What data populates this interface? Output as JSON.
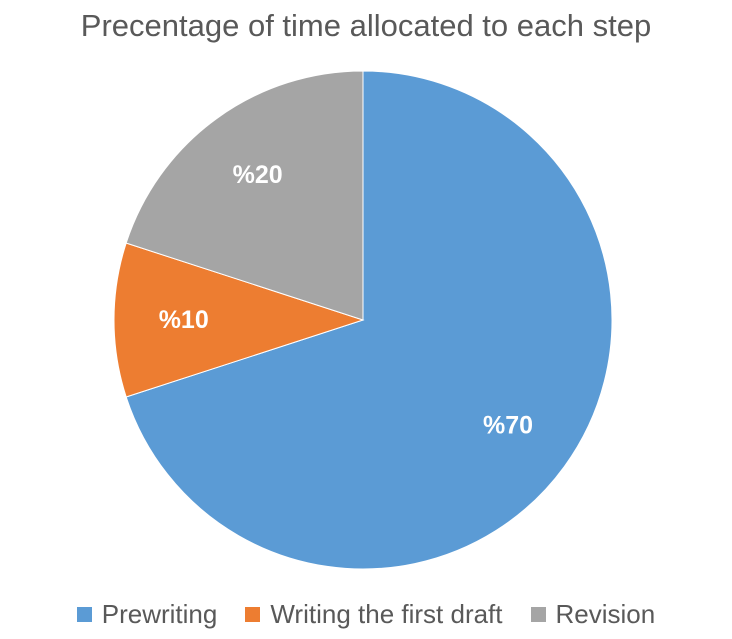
{
  "chart_data": {
    "type": "pie",
    "title": "Precentage of time allocated to each step",
    "categories": [
      "Prewriting",
      "Writing the first draft",
      "Revision"
    ],
    "values": [
      70,
      10,
      20
    ],
    "labels": [
      "%70",
      "%10",
      "%20"
    ],
    "colors": [
      "#5B9BD5",
      "#ED7D31",
      "#A5A5A5"
    ],
    "start_angle": "12 o'clock",
    "direction": "clockwise",
    "legend_position": "bottom"
  }
}
